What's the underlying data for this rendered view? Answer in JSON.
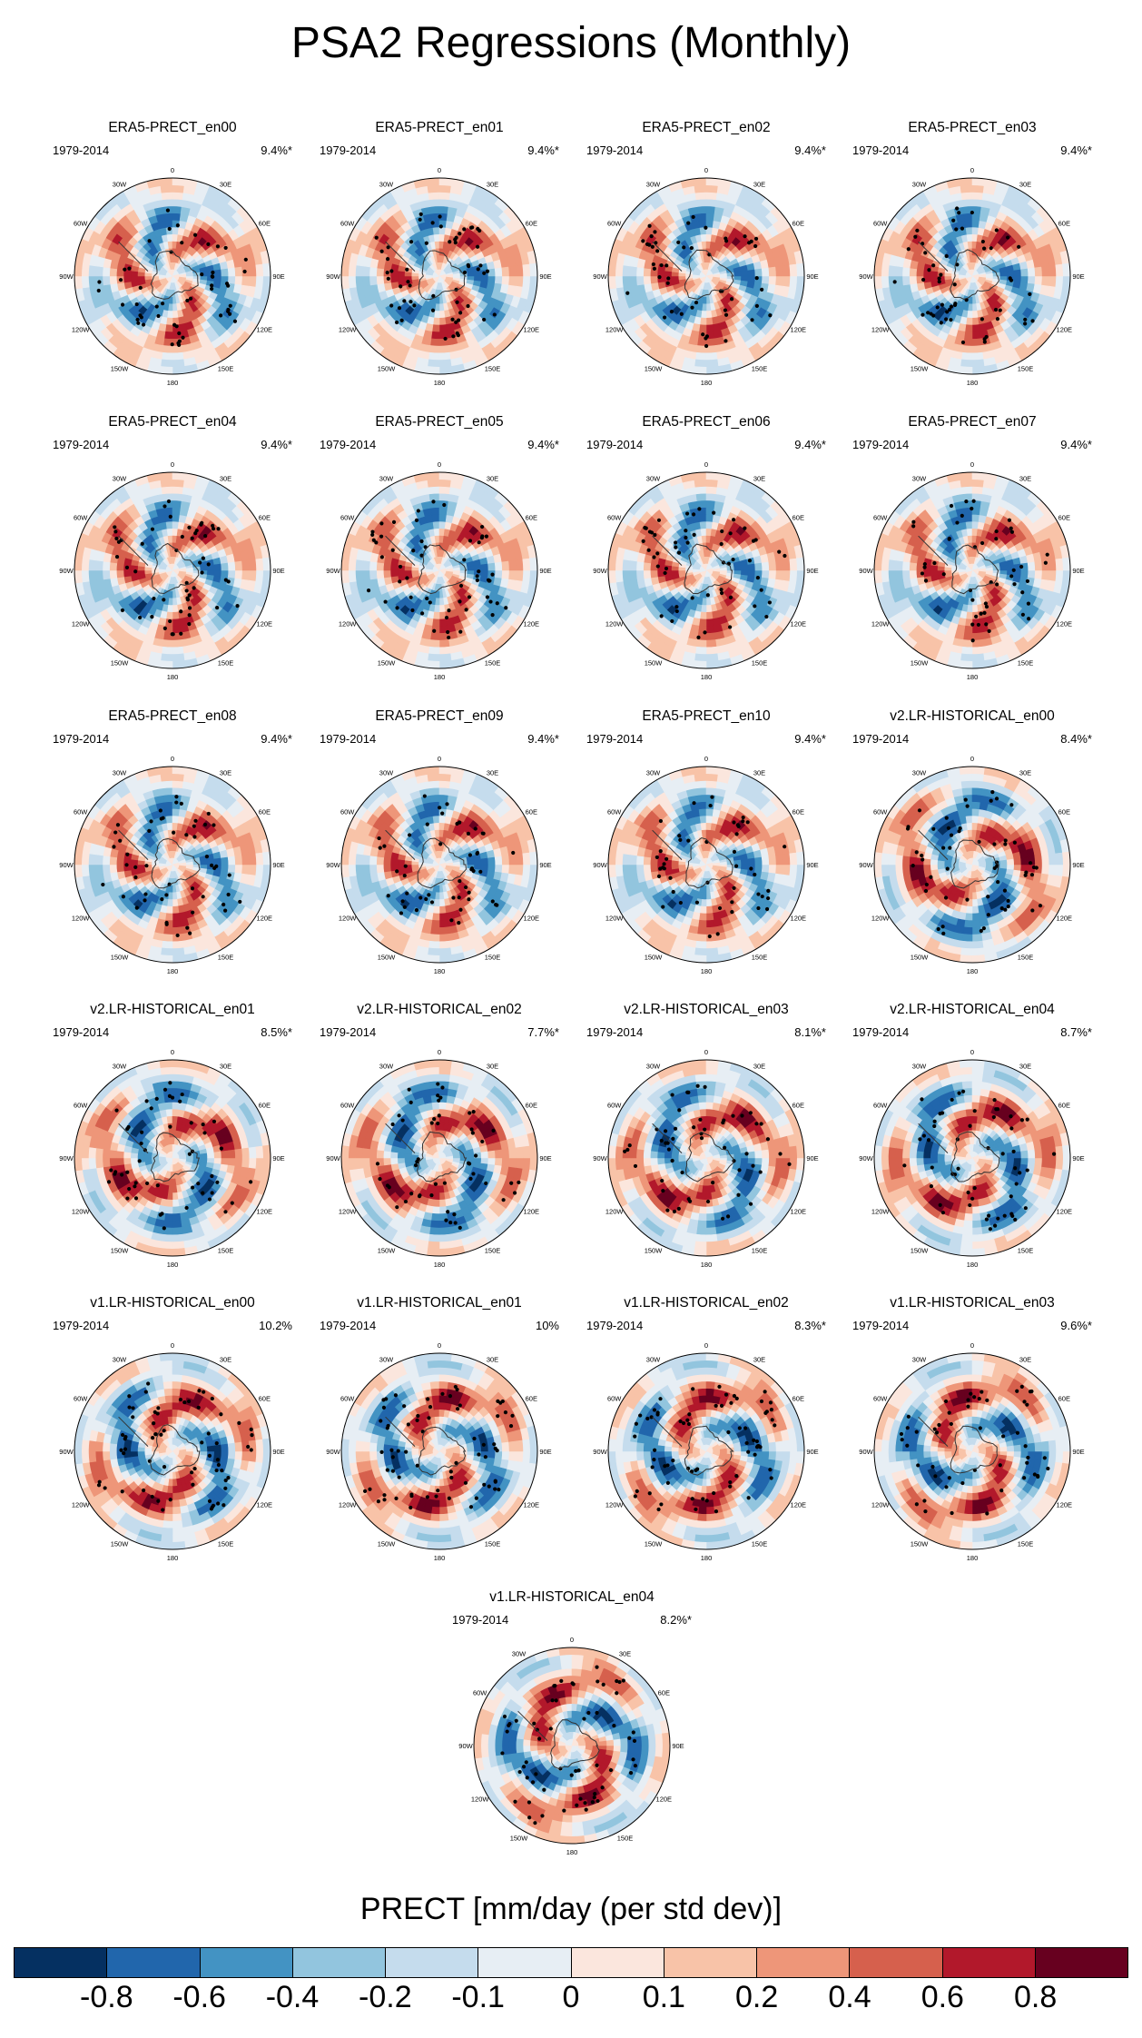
{
  "title": "PSA2 Regressions (Monthly)",
  "panels": [
    {
      "title": "ERA5-PRECT_en00",
      "years": "1979-2014",
      "pct": "9.4%*",
      "model": "era5"
    },
    {
      "title": "ERA5-PRECT_en01",
      "years": "1979-2014",
      "pct": "9.4%*",
      "model": "era5"
    },
    {
      "title": "ERA5-PRECT_en02",
      "years": "1979-2014",
      "pct": "9.4%*",
      "model": "era5"
    },
    {
      "title": "ERA5-PRECT_en03",
      "years": "1979-2014",
      "pct": "9.4%*",
      "model": "era5"
    },
    {
      "title": "ERA5-PRECT_en04",
      "years": "1979-2014",
      "pct": "9.4%*",
      "model": "era5"
    },
    {
      "title": "ERA5-PRECT_en05",
      "years": "1979-2014",
      "pct": "9.4%*",
      "model": "era5"
    },
    {
      "title": "ERA5-PRECT_en06",
      "years": "1979-2014",
      "pct": "9.4%*",
      "model": "era5"
    },
    {
      "title": "ERA5-PRECT_en07",
      "years": "1979-2014",
      "pct": "9.4%*",
      "model": "era5"
    },
    {
      "title": "ERA5-PRECT_en08",
      "years": "1979-2014",
      "pct": "9.4%*",
      "model": "era5"
    },
    {
      "title": "ERA5-PRECT_en09",
      "years": "1979-2014",
      "pct": "9.4%*",
      "model": "era5"
    },
    {
      "title": "ERA5-PRECT_en10",
      "years": "1979-2014",
      "pct": "9.4%*",
      "model": "era5"
    },
    {
      "title": "v2.LR-HISTORICAL_en00",
      "years": "1979-2014",
      "pct": "8.4%*",
      "model": "lr"
    },
    {
      "title": "v2.LR-HISTORICAL_en01",
      "years": "1979-2014",
      "pct": "8.5%*",
      "model": "lr"
    },
    {
      "title": "v2.LR-HISTORICAL_en02",
      "years": "1979-2014",
      "pct": "7.7%*",
      "model": "lr"
    },
    {
      "title": "v2.LR-HISTORICAL_en03",
      "years": "1979-2014",
      "pct": "8.1%*",
      "model": "lr"
    },
    {
      "title": "v2.LR-HISTORICAL_en04",
      "years": "1979-2014",
      "pct": "8.7%*",
      "model": "lr"
    },
    {
      "title": "v1.LR-HISTORICAL_en00",
      "years": "1979-2014",
      "pct": "10.2%",
      "model": "lr"
    },
    {
      "title": "v1.LR-HISTORICAL_en01",
      "years": "1979-2014",
      "pct": "10%",
      "model": "lr"
    },
    {
      "title": "v1.LR-HISTORICAL_en02",
      "years": "1979-2014",
      "pct": "8.3%*",
      "model": "lr"
    },
    {
      "title": "v1.LR-HISTORICAL_en03",
      "years": "1979-2014",
      "pct": "9.6%*",
      "model": "lr"
    },
    {
      "title": "v1.LR-HISTORICAL_en04",
      "years": "1979-2014",
      "pct": "8.2%*",
      "model": "lr"
    }
  ],
  "longitude_labels": {
    "top": "0",
    "upper_left": "30W",
    "upper_right": "30E",
    "left_upper": "60W",
    "right_upper": "60E",
    "left": "90W",
    "right": "90E",
    "left_lower": "120W",
    "right_lower": "120E",
    "lower_left": "150W",
    "lower_right": "150E",
    "bottom": "180"
  },
  "colorbar": {
    "title": "PRECT [mm/day (per std dev)]",
    "colors": [
      "#053061",
      "#2166ac",
      "#4393c3",
      "#92c5de",
      "#c5dced",
      "#e7eef4",
      "#fbe6dd",
      "#f8c3a8",
      "#ee9679",
      "#d6604d",
      "#b2182b",
      "#67001f"
    ],
    "labels": [
      "-0.8",
      "-0.6",
      "-0.4",
      "-0.2",
      "-0.1",
      "0",
      "0.1",
      "0.2",
      "0.4",
      "0.6",
      "0.8"
    ]
  }
}
